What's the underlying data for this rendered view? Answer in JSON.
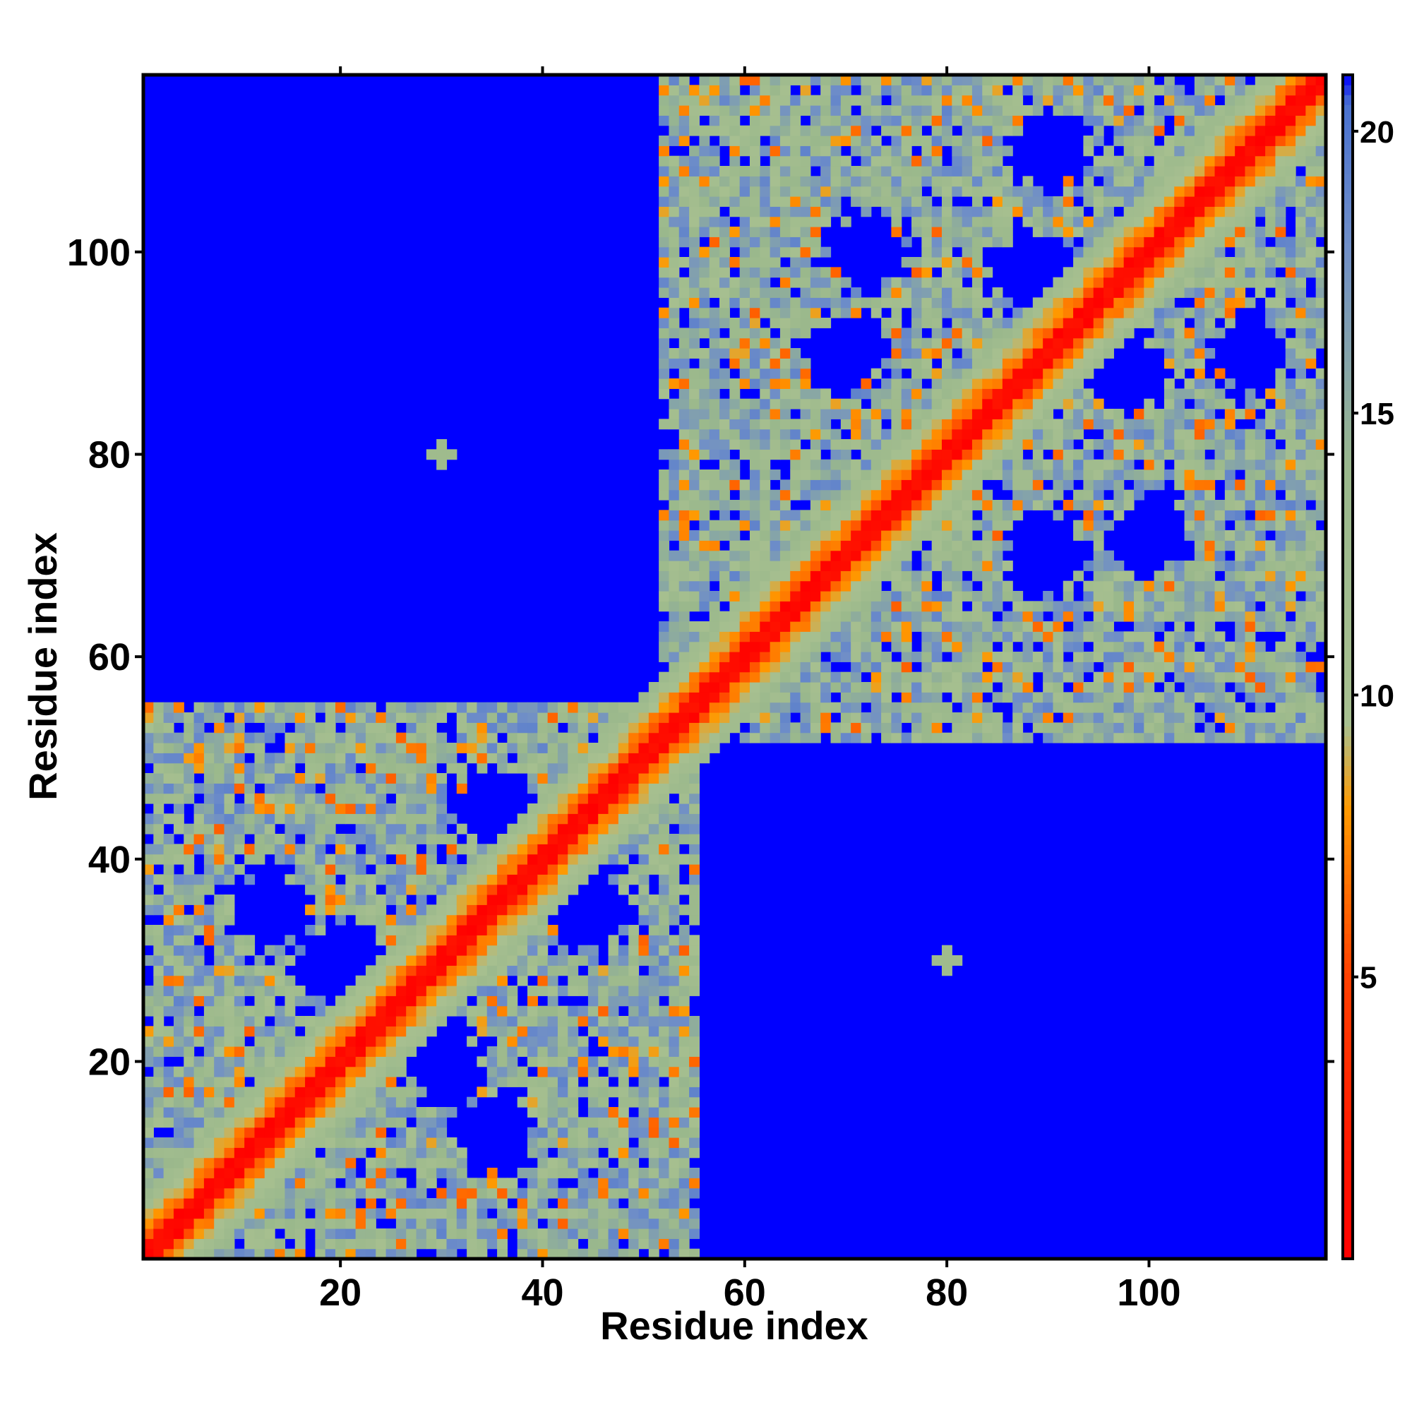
{
  "chart_data": {
    "type": "heatmap",
    "title": "",
    "xlabel": "Residue index",
    "ylabel": "Residue index",
    "xlim": [
      1,
      117
    ],
    "ylim": [
      1,
      117
    ],
    "xticks": [
      20,
      40,
      60,
      80,
      100
    ],
    "yticks": [
      20,
      40,
      60,
      80,
      100
    ],
    "value_range": [
      0,
      21
    ],
    "colorbar": {
      "ticks": [
        5,
        10,
        15,
        20
      ],
      "stops": [
        {
          "value": 0,
          "color": "#ff0000"
        },
        {
          "value": 5,
          "color": "#ff4000"
        },
        {
          "value": 8,
          "color": "#ff9900"
        },
        {
          "value": 9.5,
          "color": "#a8c090"
        },
        {
          "value": 14,
          "color": "#9ab88c"
        },
        {
          "value": 18,
          "color": "#6f8ec8"
        },
        {
          "value": 20.5,
          "color": "#4a72d0"
        },
        {
          "value": 21,
          "color": "#0000ff"
        }
      ]
    },
    "background_value": 21,
    "diagonal_value": 0,
    "blocks": [
      {
        "x": [
          1,
          50
        ],
        "y": [
          1,
          55
        ],
        "type": "contact-region"
      },
      {
        "x": [
          52,
          117
        ],
        "y": [
          52,
          117
        ],
        "type": "contact-region"
      }
    ],
    "isolated_patches": [
      {
        "x": 30,
        "y": 80
      },
      {
        "x": 80,
        "y": 30
      }
    ]
  }
}
